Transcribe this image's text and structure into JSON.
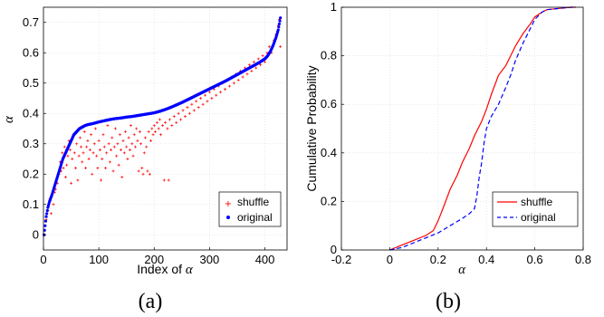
{
  "chart_data": [
    {
      "type": "scatter",
      "panel_label": "(a)",
      "xlabel_prefix": "Index of ",
      "xlabel_symbol": "α",
      "ylabel": "α",
      "xlim": [
        0,
        440
      ],
      "ylim": [
        -0.05,
        0.75
      ],
      "xticks": [
        "0",
        "100",
        "200",
        "300",
        "400"
      ],
      "yticks": [
        "0",
        "0.1",
        "0.2",
        "0.3",
        "0.4",
        "0.5",
        "0.6",
        "0.7"
      ],
      "grid": true,
      "legend_position": "bottom-right",
      "series": [
        {
          "name": "shuffle",
          "color": "#ff0000",
          "marker": "+",
          "points": [
            [
              2,
              0.0
            ],
            [
              5,
              0.05
            ],
            [
              8,
              0.08
            ],
            [
              12,
              0.12
            ],
            [
              14,
              0.07
            ],
            [
              18,
              0.1
            ],
            [
              20,
              0.14
            ],
            [
              22,
              0.15
            ],
            [
              25,
              0.17
            ],
            [
              28,
              0.2
            ],
            [
              30,
              0.24
            ],
            [
              32,
              0.21
            ],
            [
              34,
              0.27
            ],
            [
              36,
              0.22
            ],
            [
              38,
              0.29
            ],
            [
              40,
              0.19
            ],
            [
              42,
              0.23
            ],
            [
              44,
              0.26
            ],
            [
              46,
              0.31
            ],
            [
              48,
              0.28
            ],
            [
              50,
              0.17
            ],
            [
              52,
              0.25
            ],
            [
              54,
              0.33
            ],
            [
              56,
              0.27
            ],
            [
              58,
              0.22
            ],
            [
              60,
              0.3
            ],
            [
              62,
              0.18
            ],
            [
              64,
              0.26
            ],
            [
              66,
              0.32
            ],
            [
              68,
              0.29
            ],
            [
              70,
              0.24
            ],
            [
              72,
              0.27
            ],
            [
              74,
              0.34
            ],
            [
              76,
              0.22
            ],
            [
              78,
              0.29
            ],
            [
              80,
              0.31
            ],
            [
              82,
              0.25
            ],
            [
              84,
              0.28
            ],
            [
              86,
              0.33
            ],
            [
              88,
              0.2
            ],
            [
              90,
              0.27
            ],
            [
              92,
              0.3
            ],
            [
              94,
              0.35
            ],
            [
              96,
              0.26
            ],
            [
              98,
              0.22
            ],
            [
              100,
              0.31
            ],
            [
              102,
              0.28
            ],
            [
              104,
              0.18
            ],
            [
              106,
              0.25
            ],
            [
              108,
              0.33
            ],
            [
              110,
              0.29
            ],
            [
              112,
              0.22
            ],
            [
              114,
              0.27
            ],
            [
              116,
              0.36
            ],
            [
              118,
              0.3
            ],
            [
              120,
              0.24
            ],
            [
              122,
              0.28
            ],
            [
              124,
              0.32
            ],
            [
              126,
              0.21
            ],
            [
              128,
              0.29
            ],
            [
              130,
              0.35
            ],
            [
              132,
              0.26
            ],
            [
              134,
              0.3
            ],
            [
              136,
              0.23
            ],
            [
              138,
              0.33
            ],
            [
              140,
              0.28
            ],
            [
              142,
              0.19
            ],
            [
              144,
              0.31
            ],
            [
              146,
              0.27
            ],
            [
              148,
              0.34
            ],
            [
              150,
              0.29
            ],
            [
              152,
              0.25
            ],
            [
              154,
              0.32
            ],
            [
              156,
              0.28
            ],
            [
              158,
              0.36
            ],
            [
              160,
              0.3
            ],
            [
              162,
              0.26
            ],
            [
              164,
              0.33
            ],
            [
              166,
              0.29
            ],
            [
              168,
              0.35
            ],
            [
              170,
              0.31
            ],
            [
              172,
              0.21
            ],
            [
              174,
              0.34
            ],
            [
              176,
              0.3
            ],
            [
              178,
              0.22
            ],
            [
              180,
              0.2
            ],
            [
              182,
              0.27
            ],
            [
              184,
              0.32
            ],
            [
              186,
              0.29
            ],
            [
              188,
              0.21
            ],
            [
              190,
              0.34
            ],
            [
              192,
              0.2
            ],
            [
              194,
              0.31
            ],
            [
              196,
              0.35
            ],
            [
              198,
              0.33
            ],
            [
              200,
              0.36
            ],
            [
              202,
              0.34
            ],
            [
              205,
              0.37
            ],
            [
              208,
              0.35
            ],
            [
              210,
              0.38
            ],
            [
              212,
              0.33
            ],
            [
              215,
              0.36
            ],
            [
              218,
              0.18
            ],
            [
              220,
              0.37
            ],
            [
              224,
              0.35
            ],
            [
              226,
              0.18
            ],
            [
              228,
              0.38
            ],
            [
              232,
              0.36
            ],
            [
              236,
              0.39
            ],
            [
              240,
              0.37
            ],
            [
              244,
              0.4
            ],
            [
              248,
              0.38
            ],
            [
              252,
              0.41
            ],
            [
              256,
              0.39
            ],
            [
              260,
              0.42
            ],
            [
              264,
              0.4
            ],
            [
              268,
              0.43
            ],
            [
              272,
              0.41
            ],
            [
              276,
              0.44
            ],
            [
              280,
              0.42
            ],
            [
              284,
              0.45
            ],
            [
              288,
              0.43
            ],
            [
              292,
              0.46
            ],
            [
              296,
              0.44
            ],
            [
              300,
              0.47
            ],
            [
              304,
              0.45
            ],
            [
              308,
              0.48
            ],
            [
              312,
              0.46
            ],
            [
              316,
              0.49
            ],
            [
              320,
              0.47
            ],
            [
              324,
              0.5
            ],
            [
              328,
              0.48
            ],
            [
              332,
              0.51
            ],
            [
              336,
              0.49
            ],
            [
              340,
              0.52
            ],
            [
              344,
              0.5
            ],
            [
              348,
              0.53
            ],
            [
              352,
              0.51
            ],
            [
              356,
              0.54
            ],
            [
              360,
              0.52
            ],
            [
              364,
              0.55
            ],
            [
              368,
              0.53
            ],
            [
              372,
              0.56
            ],
            [
              376,
              0.54
            ],
            [
              380,
              0.57
            ],
            [
              384,
              0.55
            ],
            [
              388,
              0.58
            ],
            [
              392,
              0.56
            ],
            [
              396,
              0.59
            ],
            [
              400,
              0.57
            ],
            [
              404,
              0.6
            ],
            [
              408,
              0.62
            ],
            [
              412,
              0.6
            ],
            [
              416,
              0.64
            ],
            [
              420,
              0.66
            ],
            [
              424,
              0.69
            ],
            [
              426,
              0.71
            ],
            [
              428,
              0.62
            ]
          ]
        },
        {
          "name": "original",
          "color": "#0000ff",
          "marker": "dot",
          "points": [
            [
              1,
              0.0
            ],
            [
              3,
              0.03
            ],
            [
              5,
              0.06
            ],
            [
              8,
              0.09
            ],
            [
              11,
              0.11
            ],
            [
              15,
              0.13
            ],
            [
              20,
              0.16
            ],
            [
              25,
              0.19
            ],
            [
              30,
              0.22
            ],
            [
              35,
              0.25
            ],
            [
              40,
              0.27
            ],
            [
              45,
              0.29
            ],
            [
              50,
              0.31
            ],
            [
              55,
              0.33
            ],
            [
              60,
              0.34
            ],
            [
              65,
              0.35
            ],
            [
              70,
              0.355
            ],
            [
              75,
              0.36
            ],
            [
              80,
              0.363
            ],
            [
              90,
              0.367
            ],
            [
              100,
              0.372
            ],
            [
              110,
              0.376
            ],
            [
              120,
              0.38
            ],
            [
              130,
              0.383
            ],
            [
              140,
              0.385
            ],
            [
              150,
              0.388
            ],
            [
              160,
              0.39
            ],
            [
              170,
              0.393
            ],
            [
              180,
              0.396
            ],
            [
              190,
              0.399
            ],
            [
              200,
              0.402
            ],
            [
              210,
              0.407
            ],
            [
              220,
              0.413
            ],
            [
              230,
              0.42
            ],
            [
              240,
              0.428
            ],
            [
              250,
              0.436
            ],
            [
              260,
              0.445
            ],
            [
              270,
              0.454
            ],
            [
              280,
              0.463
            ],
            [
              290,
              0.472
            ],
            [
              300,
              0.481
            ],
            [
              310,
              0.49
            ],
            [
              320,
              0.499
            ],
            [
              330,
              0.508
            ],
            [
              340,
              0.518
            ],
            [
              350,
              0.528
            ],
            [
              360,
              0.538
            ],
            [
              370,
              0.548
            ],
            [
              380,
              0.558
            ],
            [
              390,
              0.568
            ],
            [
              400,
              0.58
            ],
            [
              405,
              0.59
            ],
            [
              410,
              0.605
            ],
            [
              415,
              0.625
            ],
            [
              420,
              0.65
            ],
            [
              424,
              0.675
            ],
            [
              426,
              0.695
            ],
            [
              428,
              0.715
            ]
          ]
        }
      ]
    },
    {
      "type": "line",
      "panel_label": "(b)",
      "xlabel": "α",
      "ylabel": "Cumulative Probability",
      "xlim": [
        -0.2,
        0.8
      ],
      "ylim": [
        0,
        1
      ],
      "xticks": [
        "-0.2",
        "0",
        "0.2",
        "0.4",
        "0.6",
        "0.8"
      ],
      "yticks": [
        "0",
        "0.2",
        "0.4",
        "0.6",
        "0.8",
        "1"
      ],
      "grid": true,
      "legend_position": "bottom-right",
      "series": [
        {
          "name": "shuffle",
          "color": "#ff0000",
          "line_style": "solid",
          "x": [
            0.0,
            0.05,
            0.1,
            0.15,
            0.18,
            0.2,
            0.22,
            0.25,
            0.28,
            0.3,
            0.33,
            0.35,
            0.38,
            0.4,
            0.42,
            0.45,
            0.48,
            0.5,
            0.52,
            0.55,
            0.58,
            0.6,
            0.63,
            0.65,
            0.7,
            0.75,
            0.77
          ],
          "y": [
            0.0,
            0.02,
            0.04,
            0.06,
            0.08,
            0.12,
            0.17,
            0.25,
            0.31,
            0.36,
            0.42,
            0.47,
            0.53,
            0.58,
            0.64,
            0.72,
            0.76,
            0.8,
            0.84,
            0.89,
            0.93,
            0.96,
            0.98,
            0.99,
            0.995,
            1.0,
            1.0
          ]
        },
        {
          "name": "original",
          "color": "#0000ff",
          "line_style": "dashed",
          "x": [
            0.0,
            0.05,
            0.1,
            0.15,
            0.2,
            0.25,
            0.3,
            0.33,
            0.35,
            0.36,
            0.37,
            0.38,
            0.39,
            0.4,
            0.42,
            0.45,
            0.48,
            0.5,
            0.52,
            0.55,
            0.58,
            0.6,
            0.63,
            0.65,
            0.7,
            0.75,
            0.77
          ],
          "y": [
            0.0,
            0.01,
            0.03,
            0.05,
            0.07,
            0.1,
            0.13,
            0.15,
            0.17,
            0.22,
            0.3,
            0.36,
            0.44,
            0.5,
            0.55,
            0.6,
            0.67,
            0.72,
            0.78,
            0.85,
            0.91,
            0.95,
            0.98,
            0.99,
            0.995,
            1.0,
            1.0
          ]
        }
      ]
    }
  ]
}
